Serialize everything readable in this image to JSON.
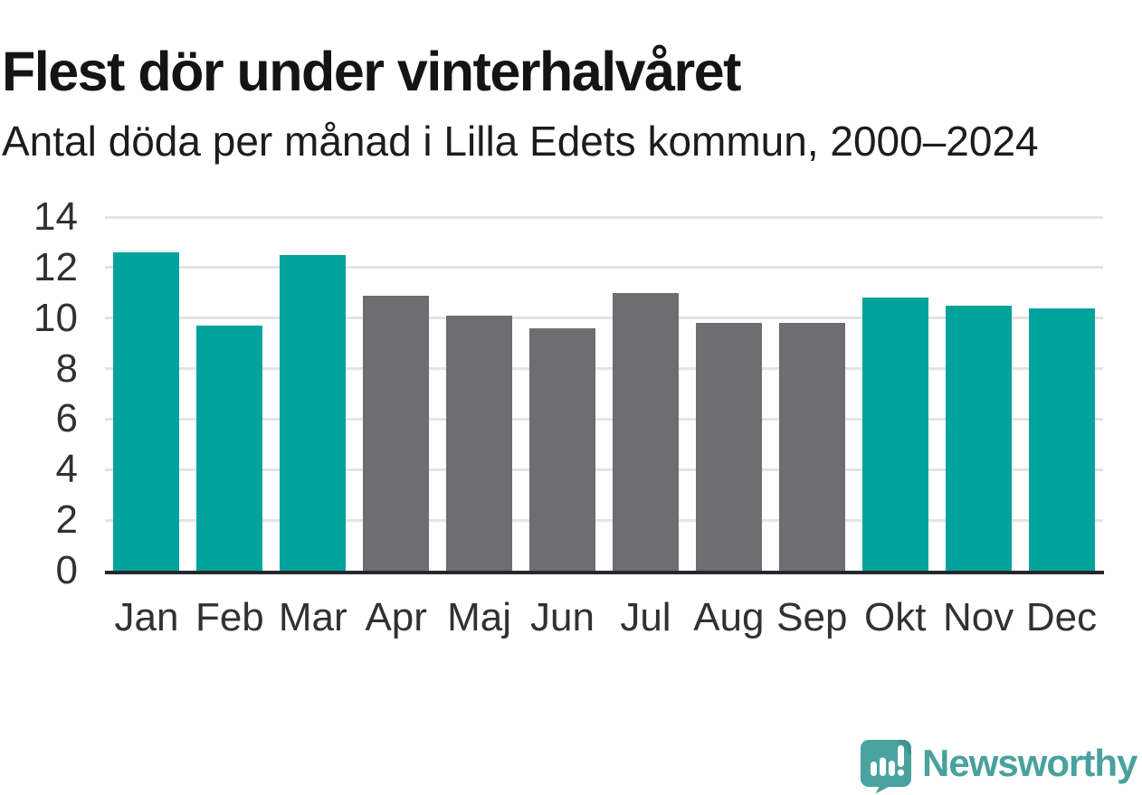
{
  "header": {
    "title": "Flest dör under vinterhalvåret",
    "subtitle": "Antal döda per månad i Lilla Edets kommun, 2000–2024"
  },
  "branding": {
    "wordmark": "Newsworthy",
    "icon": "newsworthy-speech-bubble-barchart-icon",
    "color": "#48a19d"
  },
  "colors": {
    "winter_bar": "#00a39c",
    "summer_bar": "#6d6d72",
    "gridline": "#e4e4e4",
    "axis_line": "#26282b",
    "tick_text": "#303134",
    "title_text": "#141414"
  },
  "chart_data": {
    "type": "bar",
    "title": "Flest dör under vinterhalvåret",
    "subtitle": "Antal döda per månad i Lilla Edets kommun, 2000–2024",
    "categories": [
      "Jan",
      "Feb",
      "Mar",
      "Apr",
      "Maj",
      "Jun",
      "Jul",
      "Aug",
      "Sep",
      "Okt",
      "Nov",
      "Dec"
    ],
    "values": [
      12.6,
      9.7,
      12.5,
      10.9,
      10.1,
      9.6,
      11.0,
      9.8,
      9.8,
      10.8,
      10.5,
      10.4
    ],
    "groups": [
      "winter",
      "winter",
      "winter",
      "summer",
      "summer",
      "summer",
      "summer",
      "summer",
      "summer",
      "winter",
      "winter",
      "winter"
    ],
    "highlighted_months": [
      "Jan",
      "Feb",
      "Mar",
      "Okt",
      "Nov",
      "Dec"
    ],
    "xlabel": "",
    "ylabel": "",
    "ylim": [
      0,
      14
    ],
    "yticks": [
      0,
      2,
      4,
      6,
      8,
      10,
      12,
      14
    ],
    "grid": "horizontal",
    "legend": "none"
  }
}
